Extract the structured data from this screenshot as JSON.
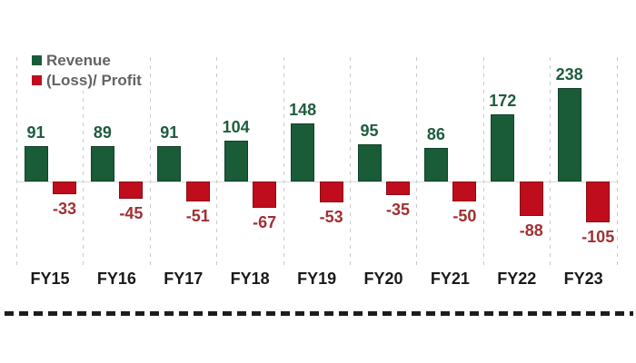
{
  "legend": {
    "items": [
      {
        "label": "Revenue",
        "color": "#1a5c38"
      },
      {
        "label": "(Loss)/ Profit",
        "color": "#c00d1e"
      }
    ],
    "text_color": "#636363"
  },
  "chart_data": {
    "type": "bar",
    "title": "",
    "xlabel": "",
    "ylabel": "",
    "categories": [
      "FY15",
      "FY16",
      "FY17",
      "FY18",
      "FY19",
      "FY20",
      "FY21",
      "FY22",
      "FY23"
    ],
    "series": [
      {
        "name": "Revenue",
        "color": "#1a5c38",
        "border_color": "#0f4229",
        "label_color": "#1e5c3e",
        "values": [
          91,
          89,
          91,
          104,
          148,
          95,
          86,
          172,
          238
        ]
      },
      {
        "name": "(Loss)/ Profit",
        "color": "#c00d1e",
        "border_color": "#8a0c16",
        "label_color": "#a03032",
        "values": [
          -33,
          -45,
          -51,
          -67,
          -53,
          -35,
          -50,
          -88,
          -105
        ]
      }
    ],
    "ylim": [
      -120,
      260
    ],
    "baseline": 0,
    "grid": "vertical-dashed",
    "gridline_color": "#c9c9c9",
    "legend_position": "top-left",
    "axis_label_color": "#1a1a1a",
    "data_labels": "on",
    "bottom_rule": "black-dashed"
  }
}
